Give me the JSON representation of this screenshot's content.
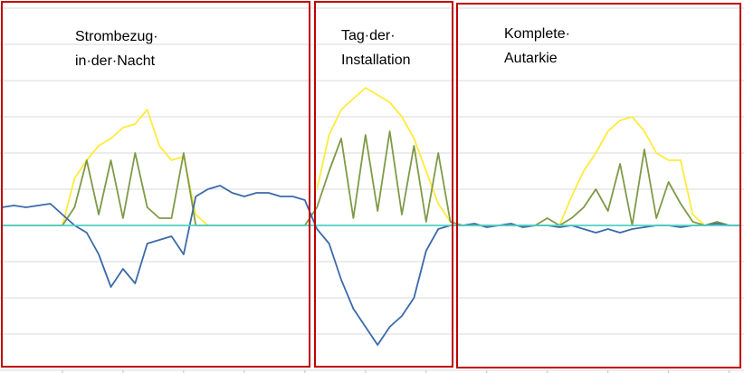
{
  "chart_data": {
    "type": "line",
    "x": [
      0,
      1,
      2,
      3,
      4,
      5,
      6,
      7,
      8,
      9,
      10,
      11,
      12,
      13,
      14,
      15,
      16,
      17,
      18,
      19,
      20,
      21,
      22,
      23,
      24,
      25,
      26,
      27,
      28,
      29,
      30,
      31,
      32,
      33,
      34,
      35,
      36,
      37,
      38,
      39,
      40,
      41,
      42,
      43,
      44,
      45,
      46,
      47,
      48,
      49,
      50,
      51,
      52,
      53,
      54,
      55,
      56,
      57,
      58,
      59,
      60,
      61
    ],
    "xlim": [
      0,
      61
    ],
    "ylim": [
      -4,
      6
    ],
    "xticks": [
      5,
      10,
      15,
      20,
      25,
      30,
      35,
      40,
      45,
      50,
      55,
      60
    ],
    "yticks": [
      -4,
      -3,
      -2,
      -1,
      0,
      1,
      2,
      3,
      4,
      5,
      6
    ],
    "grid": true,
    "series": [
      {
        "color": "#ffeb3b",
        "values": [
          null,
          null,
          null,
          null,
          null,
          0,
          1.3,
          1.8,
          2.2,
          2.4,
          2.7,
          2.8,
          3.2,
          2.2,
          1.8,
          1.9,
          0.3,
          0,
          null,
          null,
          null,
          null,
          null,
          null,
          null,
          null,
          1.0,
          2.5,
          3.2,
          3.5,
          3.8,
          3.6,
          3.4,
          3.0,
          2.4,
          1.5,
          0.6,
          0.1,
          null,
          null,
          null,
          null,
          null,
          null,
          null,
          null,
          0,
          0.8,
          1.5,
          2.0,
          2.6,
          2.9,
          3.0,
          2.6,
          2.0,
          1.8,
          1.8,
          0.3,
          0,
          null,
          null,
          null
        ]
      },
      {
        "color": "#7f9a48",
        "values": [
          0,
          0,
          0,
          0,
          0,
          0,
          0.5,
          1.8,
          0.3,
          1.8,
          0.2,
          2.0,
          0.5,
          0.2,
          0.2,
          2.0,
          0,
          0,
          0,
          0,
          0,
          0,
          0,
          0,
          0,
          0,
          0.5,
          1.5,
          2.4,
          0.2,
          2.5,
          0.4,
          2.6,
          0.3,
          2.2,
          0.1,
          2.0,
          0.1,
          0,
          0,
          0,
          0,
          0,
          0,
          0,
          0.2,
          0,
          0.2,
          0.5,
          1.0,
          0.4,
          1.7,
          0,
          2.1,
          0.2,
          1.2,
          0.6,
          0.1,
          0,
          0.1,
          0,
          0
        ]
      },
      {
        "color": "#3c6aa8",
        "values": [
          0.5,
          0.55,
          0.5,
          0.55,
          0.6,
          0.3,
          0,
          -0.2,
          -0.8,
          -1.7,
          -1.2,
          -1.6,
          -0.5,
          -0.4,
          -0.3,
          -0.8,
          0.8,
          1.0,
          1.1,
          0.9,
          0.8,
          0.9,
          0.9,
          0.8,
          0.8,
          0.7,
          -0.1,
          -0.5,
          -1.5,
          -2.3,
          -2.8,
          -3.3,
          -2.8,
          -2.5,
          -2.0,
          -0.7,
          -0.1,
          0,
          0,
          0.05,
          -0.05,
          0,
          0.05,
          -0.05,
          0,
          0,
          -0.05,
          0,
          -0.1,
          -0.2,
          -0.1,
          -0.2,
          -0.1,
          -0.05,
          0,
          0,
          -0.05,
          0,
          0,
          0.05,
          0,
          0
        ]
      },
      {
        "color": "#4fd1c5",
        "values": [
          0,
          0,
          0,
          0,
          0,
          0,
          0,
          0,
          0,
          0,
          0,
          0,
          0,
          0,
          0,
          0,
          0,
          0,
          0,
          0,
          0,
          0,
          0,
          0,
          0,
          0,
          0,
          0,
          0,
          0,
          0,
          0,
          0,
          0,
          0,
          0,
          0,
          0,
          0,
          0,
          0,
          0,
          0,
          0,
          0,
          0,
          0,
          0,
          0,
          0,
          0,
          0,
          0,
          0,
          0,
          0,
          0,
          0,
          0,
          0,
          0,
          0
        ]
      }
    ],
    "annotations": [
      {
        "lines": [
          "Strombezug·",
          "in·der·Nacht"
        ]
      },
      {
        "lines": [
          "Tag·der·",
          "Installation"
        ]
      },
      {
        "lines": [
          "Komplete·",
          "Autarkie"
        ]
      }
    ]
  }
}
